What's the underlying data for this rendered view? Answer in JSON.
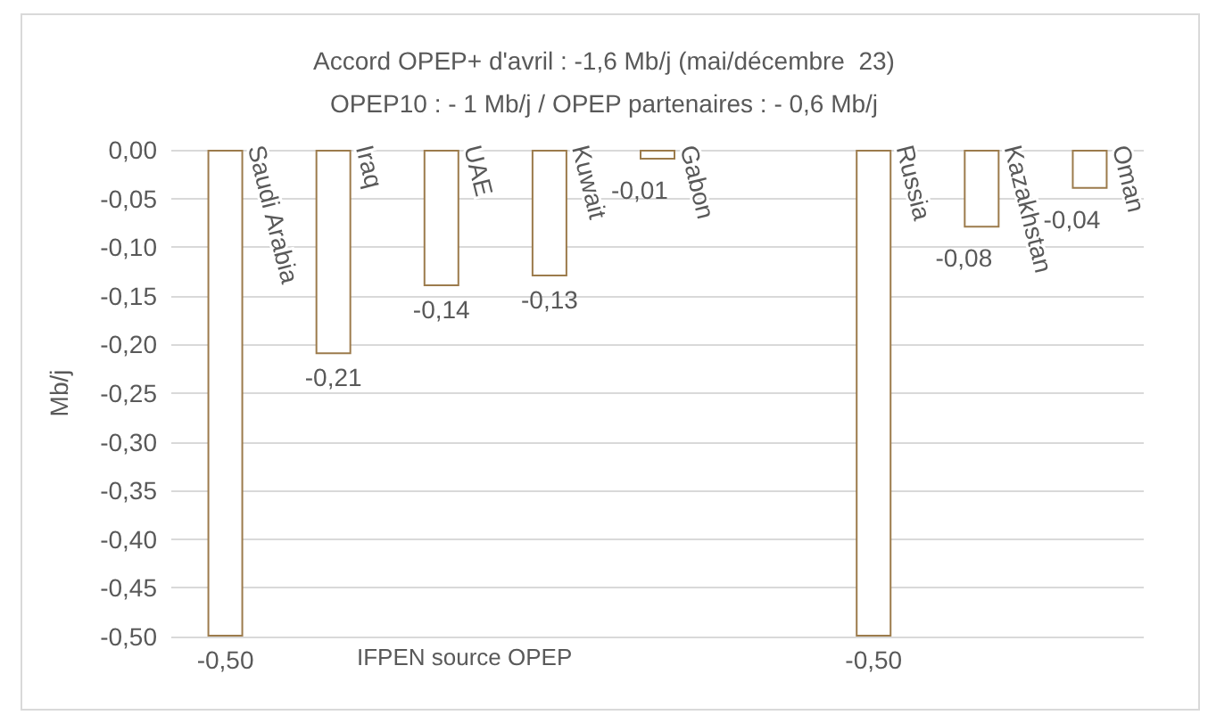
{
  "chart_data": {
    "type": "bar",
    "title": "Accord OPEP+ d'avril : -1,6 Mb/j (mai/décembre  23)",
    "subtitle": "OPEP10 : - 1 Mb/j / OPEP partenaires : - 0,6 Mb/j",
    "ylabel": "Mb/j",
    "categories": [
      "Saudi Arabia",
      "Iraq",
      "UAE",
      "Kuwait",
      "Gabon",
      null,
      "Russia",
      "Kazakhstan",
      "Oman"
    ],
    "values": [
      -0.5,
      -0.21,
      -0.14,
      -0.13,
      -0.01,
      null,
      -0.5,
      -0.08,
      -0.04
    ],
    "value_labels": [
      "-0,50",
      "-0,21",
      "-0,14",
      "-0,13",
      "-0,01",
      null,
      "-0,50",
      "-0,08",
      "-0,04"
    ],
    "color": "#9c7b4c",
    "ylim": [
      -0.5,
      0
    ],
    "yticks": [
      {
        "value": 0,
        "label": "0,00"
      },
      {
        "value": -0.05,
        "label": "-0,05"
      },
      {
        "value": -0.1,
        "label": "-0,10"
      },
      {
        "value": -0.15,
        "label": "-0,15"
      },
      {
        "value": -0.2,
        "label": "-0,20"
      },
      {
        "value": -0.25,
        "label": "-0,25"
      },
      {
        "value": -0.3,
        "label": "-0,30"
      },
      {
        "value": -0.35,
        "label": "-0,35"
      },
      {
        "value": -0.4,
        "label": "-0,40"
      },
      {
        "value": -0.45,
        "label": "-0,45"
      },
      {
        "value": -0.5,
        "label": "-0,50"
      }
    ],
    "annotations": [
      "IFPEN source OPEP"
    ],
    "grid": "y"
  }
}
